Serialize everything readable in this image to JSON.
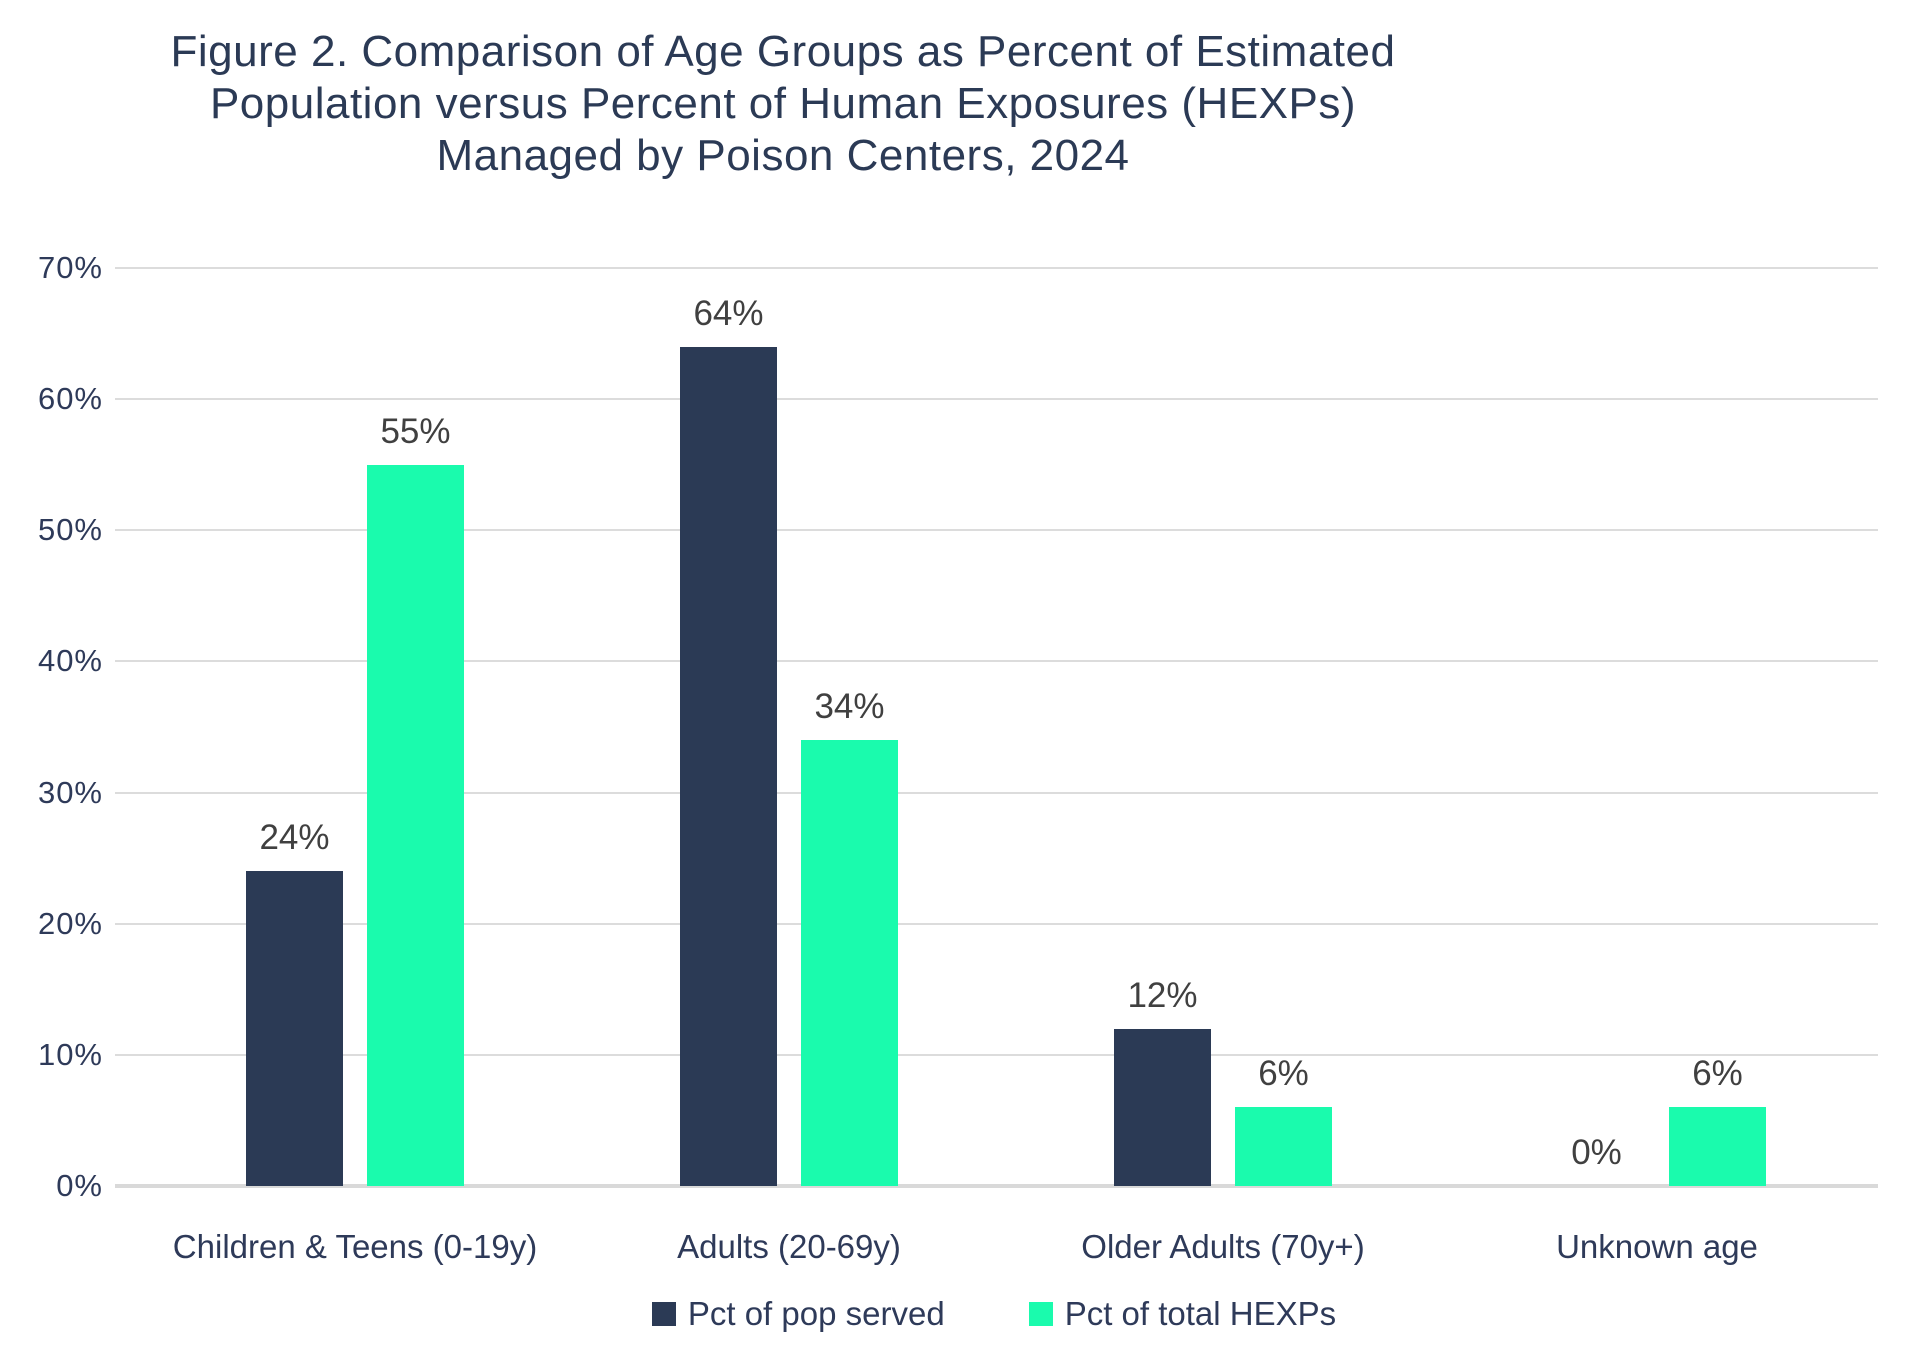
{
  "chart_data": {
    "type": "bar",
    "title": "Figure 2. Comparison of Age Groups as Percent of Estimated\nPopulation versus Percent of Human Exposures (HEXPs)\nManaged by Poison Centers, 2024",
    "categories": [
      "Children & Teens (0-19y)",
      "Adults (20-69y)",
      "Older Adults (70y+)",
      "Unknown age"
    ],
    "series": [
      {
        "name": "Pct of pop served",
        "color": "#2B3A55",
        "values": [
          24,
          64,
          12,
          0
        ]
      },
      {
        "name": "Pct of total HEXPs",
        "color": "#1AFBAD",
        "values": [
          55,
          34,
          6,
          6
        ]
      }
    ],
    "value_label_suffix": "%",
    "yticks": [
      {
        "value": 0,
        "label": "0%"
      },
      {
        "value": 10,
        "label": "10%"
      },
      {
        "value": 20,
        "label": "20%"
      },
      {
        "value": 30,
        "label": "30%"
      },
      {
        "value": 40,
        "label": "40%"
      },
      {
        "value": 50,
        "label": "50%"
      },
      {
        "value": 60,
        "label": "60%"
      },
      {
        "value": 70,
        "label": "70%"
      }
    ],
    "ylim": [
      0,
      70
    ],
    "grid": true,
    "legend_position": "bottom"
  },
  "colors": {
    "title_text": "#2B3A55",
    "tick_text": "#2E3A59",
    "category_text": "#2E3A59",
    "value_label_text": "#404040",
    "legend_text": "#2E3A59",
    "gridline": "#DCDCDC",
    "axis_line": "#D9D9D9",
    "background": "#FFFFFF"
  }
}
